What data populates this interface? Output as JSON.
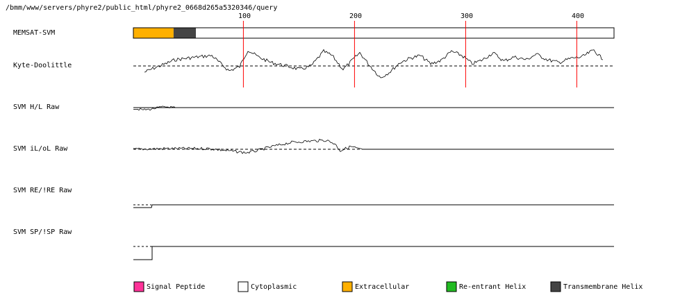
{
  "path_title": "/bmm/www/servers/phyre2/public_html/phyre2_0668d265a5320346/query",
  "residue_axis": {
    "ticks": [
      100,
      200,
      300,
      400
    ],
    "length": 431,
    "color": "#ff0000"
  },
  "tracks": [
    {
      "id": "memsat",
      "label": "MEMSAT-SVM"
    },
    {
      "id": "kd",
      "label": "Kyte-Doolittle"
    },
    {
      "id": "hl",
      "label": "SVM H/L Raw"
    },
    {
      "id": "iloi",
      "label": "SVM iL/oL Raw"
    },
    {
      "id": "re",
      "label": "SVM RE/!RE Raw"
    },
    {
      "id": "sp",
      "label": "SVM SP/!SP Raw"
    }
  ],
  "memsat_segments": [
    {
      "start": 1,
      "end": 37,
      "type": "Extracellular",
      "color": "#ffb000"
    },
    {
      "start": 37,
      "end": 57,
      "type": "Transmembrane Helix",
      "color": "#444444"
    },
    {
      "start": 57,
      "end": 431,
      "type": "Cytoplasmic",
      "color": "#ffffff"
    }
  ],
  "legend": [
    {
      "label": "Signal Peptide",
      "color": "#ff3399"
    },
    {
      "label": "Cytoplasmic",
      "color": "#ffffff"
    },
    {
      "label": "Extracellular",
      "color": "#ffb000"
    },
    {
      "label": "Re-entrant Helix",
      "color": "#22bb22"
    },
    {
      "label": "Transmembrane Helix",
      "color": "#444444"
    }
  ]
}
